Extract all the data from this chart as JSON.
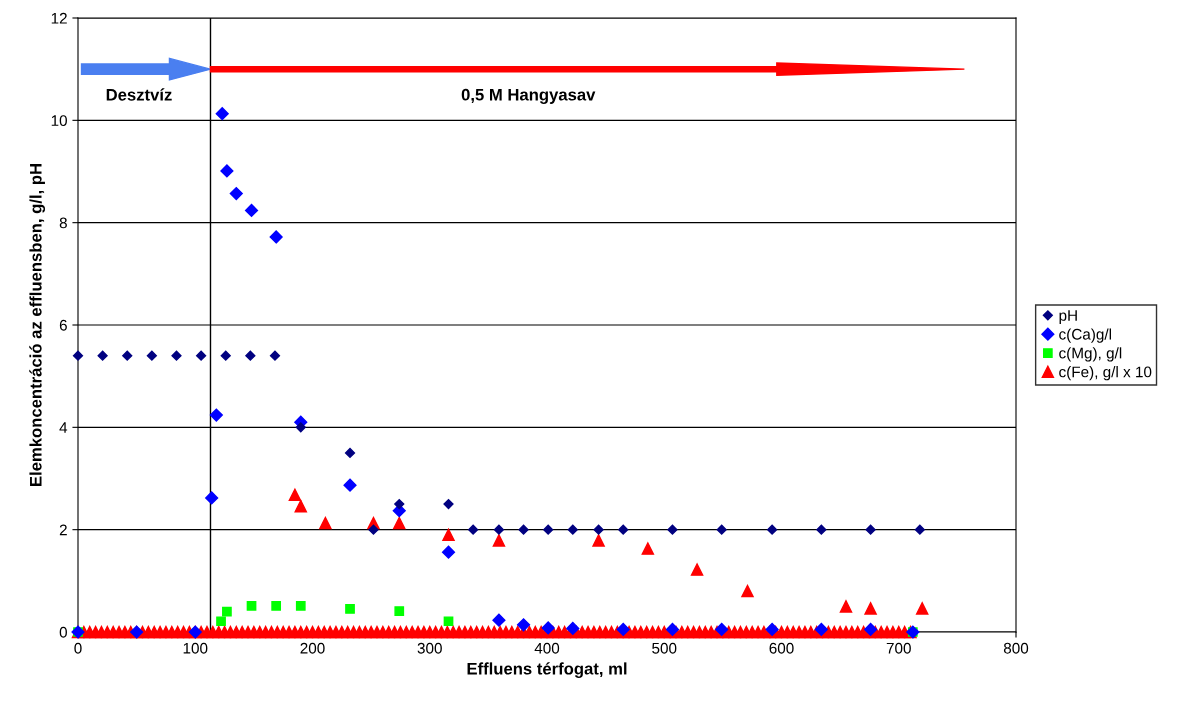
{
  "chart_data": {
    "type": "scatter",
    "xlabel": "Effluens térfogat, ml",
    "ylabel": "Elemkoncentráció az effluensben, g/l, pH",
    "xlim": [
      0,
      800
    ],
    "xticks": [
      0,
      100,
      200,
      300,
      400,
      500,
      600,
      700,
      800
    ],
    "ylim": [
      0,
      12
    ],
    "yticks": [
      0,
      2,
      4,
      6,
      8,
      10,
      12
    ],
    "grid": "y",
    "legend": "right",
    "ref_lines": [
      {
        "axis": "x",
        "value": 113,
        "color": "#000000"
      }
    ],
    "annotations": [
      "Desztvíz",
      "0,5 M Hangyasav"
    ],
    "series": [
      {
        "name": "pH",
        "color": "#000080",
        "marker": "diamond",
        "x": [
          0,
          21,
          42,
          63,
          84,
          105,
          126,
          147,
          168,
          190,
          232,
          252,
          274,
          316,
          337,
          359,
          380,
          401,
          422,
          444,
          465,
          507,
          549,
          592,
          634,
          676,
          718
        ],
        "values": [
          5.4,
          5.4,
          5.4,
          5.4,
          5.4,
          5.4,
          5.4,
          5.4,
          5.4,
          4.0,
          3.5,
          2.0,
          2.5,
          2.5,
          2.0,
          2.0,
          2.0,
          2.0,
          2.0,
          2.0,
          2.0,
          2.0,
          2.0,
          2.0,
          2.0,
          2.0,
          2.0
        ]
      },
      {
        "name": "c(Ca)g/l",
        "color": "#0000ff",
        "marker": "diamond",
        "x": [
          0,
          50,
          100,
          114,
          118,
          123,
          127,
          135,
          148,
          169,
          190,
          232,
          274,
          316,
          359,
          380,
          401,
          422,
          465,
          507,
          549,
          592,
          634,
          676,
          712
        ],
        "values": [
          0,
          0,
          0,
          2.62,
          4.24,
          10.13,
          9.01,
          8.57,
          8.24,
          7.72,
          4.1,
          2.87,
          2.37,
          1.56,
          0.23,
          0.14,
          0.08,
          0.07,
          0.05,
          0.05,
          0.05,
          0.05,
          0.05,
          0.05,
          0
        ]
      },
      {
        "name": "c(Mg), g/l",
        "color": "#00ff00",
        "marker": "square",
        "x": [
          0,
          122,
          127,
          148,
          169,
          190,
          232,
          274,
          316,
          712
        ],
        "values": [
          0,
          0.21,
          0.4,
          0.51,
          0.51,
          0.51,
          0.45,
          0.41,
          0.21,
          0
        ]
      },
      {
        "name": "c(Fe), g/l x 10",
        "color": "#ff0000",
        "marker": "triangle",
        "x": [
          0,
          5,
          10,
          15,
          20,
          25,
          30,
          35,
          40,
          45,
          50,
          55,
          60,
          65,
          70,
          75,
          80,
          85,
          90,
          95,
          100,
          105,
          110,
          115,
          120,
          125,
          130,
          135,
          140,
          145,
          150,
          155,
          160,
          165,
          170,
          175,
          180,
          185,
          190,
          195,
          200,
          205,
          210,
          215,
          220,
          225,
          230,
          235,
          240,
          245,
          250,
          255,
          260,
          265,
          270,
          275,
          280,
          285,
          290,
          295,
          300,
          305,
          310,
          315,
          320,
          325,
          330,
          335,
          340,
          345,
          350,
          355,
          360,
          365,
          370,
          375,
          380,
          385,
          390,
          395,
          400,
          405,
          410,
          415,
          420,
          425,
          430,
          435,
          440,
          445,
          450,
          455,
          460,
          465,
          470,
          475,
          480,
          485,
          490,
          495,
          500,
          505,
          510,
          515,
          520,
          525,
          530,
          535,
          540,
          545,
          550,
          555,
          560,
          565,
          570,
          575,
          580,
          585,
          590,
          595,
          600,
          605,
          610,
          615,
          620,
          625,
          630,
          635,
          640,
          645,
          650,
          655,
          660,
          665,
          670,
          675,
          680,
          685,
          690,
          695,
          700,
          705,
          710,
          185,
          190,
          211,
          252,
          274,
          316,
          359,
          444,
          486,
          528,
          571,
          655,
          676,
          720
        ],
        "values": [
          0,
          0,
          0,
          0,
          0,
          0,
          0,
          0,
          0,
          0,
          0,
          0,
          0,
          0,
          0,
          0,
          0,
          0,
          0,
          0,
          0,
          0,
          0,
          0,
          0,
          0,
          0,
          0,
          0,
          0,
          0,
          0,
          0,
          0,
          0,
          0,
          0,
          0,
          0,
          0,
          0,
          0,
          0,
          0,
          0,
          0,
          0,
          0,
          0,
          0,
          0,
          0,
          0,
          0,
          0,
          0,
          0,
          0,
          0,
          0,
          0,
          0,
          0,
          0,
          0,
          0,
          0,
          0,
          0,
          0,
          0,
          0,
          0,
          0,
          0,
          0,
          0,
          0,
          0,
          0,
          0,
          0,
          0,
          0,
          0,
          0,
          0,
          0,
          0,
          0,
          0,
          0,
          0,
          0,
          0,
          0,
          0,
          0,
          0,
          0,
          0,
          0,
          0,
          0,
          0,
          0,
          0,
          0,
          0,
          0,
          0,
          0,
          0,
          0,
          0,
          0,
          0,
          0,
          0,
          0,
          0,
          0,
          0,
          0,
          0,
          0,
          0,
          0,
          0,
          0,
          0,
          0,
          0,
          0,
          0,
          0,
          0,
          0,
          0,
          0,
          0,
          0,
          0,
          2.68,
          2.46,
          2.13,
          2.13,
          2.13,
          1.9,
          1.79,
          1.79,
          1.63,
          1.22,
          0.8,
          0.5,
          0.46,
          0.46
        ]
      }
    ]
  }
}
